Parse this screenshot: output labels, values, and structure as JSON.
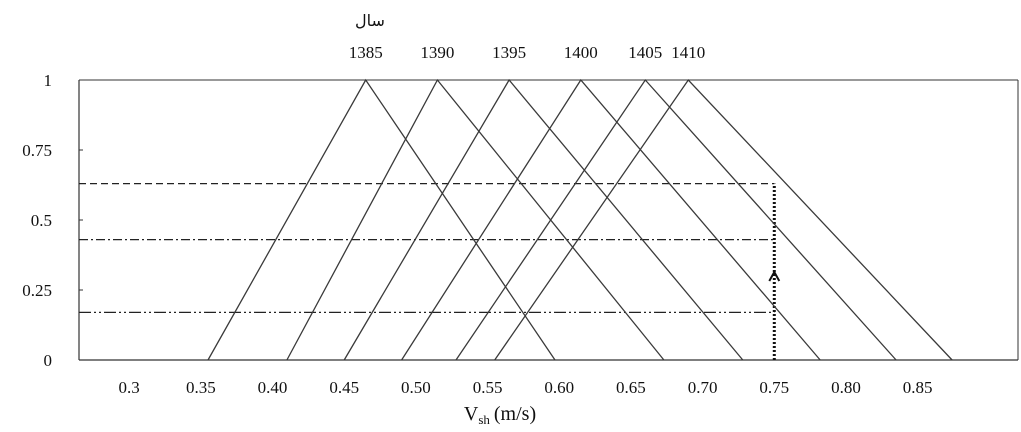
{
  "chart_data": {
    "type": "line",
    "title": "سال",
    "xlabel": "V",
    "xlabel_sub": "sh",
    "xlabel_unit": "(m/s)",
    "xlim": [
      0.27,
      0.92
    ],
    "ylim": [
      0,
      1
    ],
    "x_ticks": [
      "0.3",
      "0.35",
      "0.40",
      "0.45",
      "0.50",
      "0.55",
      "0.60",
      "0.65",
      "0.70",
      "0.75",
      "0.80",
      "0.85"
    ],
    "y_ticks": [
      "0",
      "0.25",
      "0.5",
      "0.75",
      "1"
    ],
    "series": [
      {
        "name": "1385",
        "x": [
          0.355,
          0.465,
          0.597
        ],
        "y": [
          0,
          1,
          0
        ]
      },
      {
        "name": "1390",
        "x": [
          0.41,
          0.515,
          0.673
        ],
        "y": [
          0,
          1,
          0
        ]
      },
      {
        "name": "1395",
        "x": [
          0.45,
          0.565,
          0.728
        ],
        "y": [
          0,
          1,
          0
        ]
      },
      {
        "name": "1400",
        "x": [
          0.49,
          0.615,
          0.782
        ],
        "y": [
          0,
          1,
          0
        ]
      },
      {
        "name": "1405",
        "x": [
          0.528,
          0.66,
          0.835
        ],
        "y": [
          0,
          1,
          0
        ]
      },
      {
        "name": "1410",
        "x": [
          0.555,
          0.69,
          0.874
        ],
        "y": [
          0,
          1,
          0
        ]
      }
    ],
    "reference_lines": {
      "horizontal": [
        {
          "y": 0.63,
          "style": "dashed"
        },
        {
          "y": 0.43,
          "style": "dash-dot"
        },
        {
          "y": 0.17,
          "style": "dash-dot-dot"
        }
      ],
      "vertical": {
        "x": 0.75,
        "style": "dotted",
        "arrow": true
      }
    },
    "grid": false,
    "legend": "none"
  }
}
